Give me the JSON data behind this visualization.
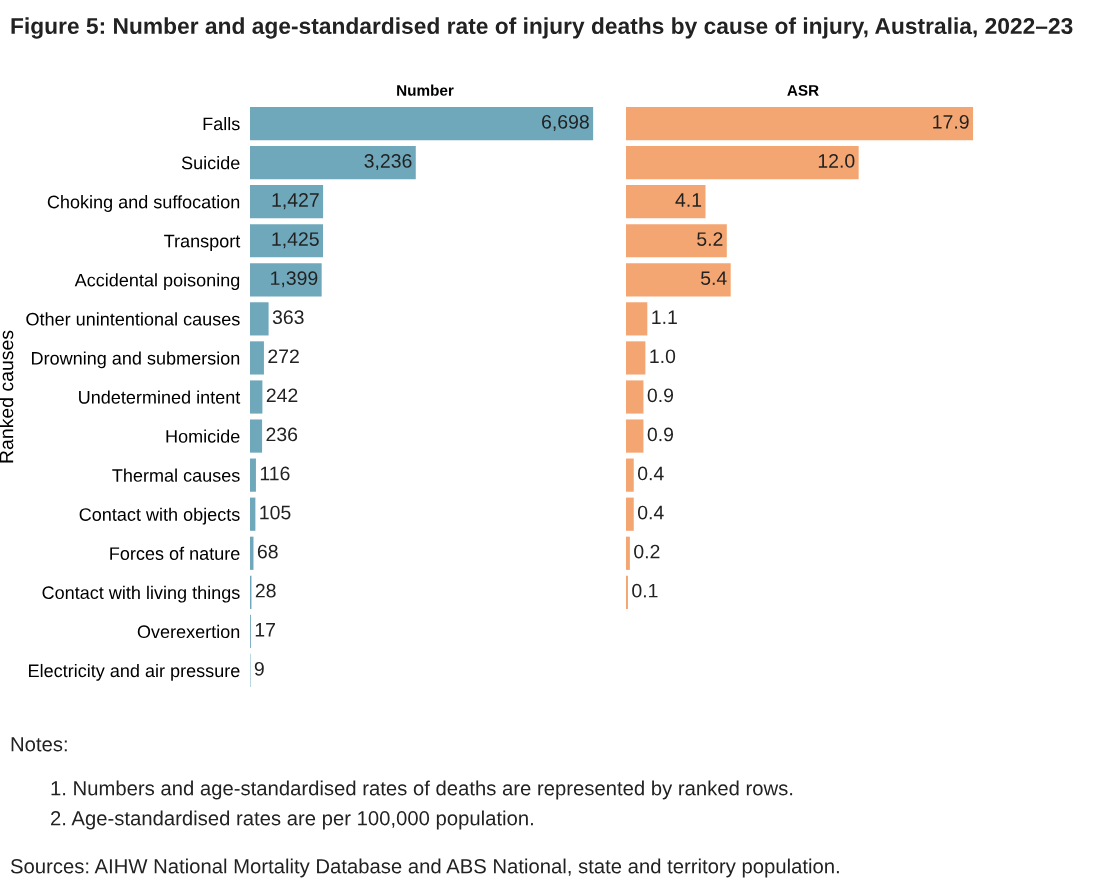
{
  "chart_data": [
    {
      "type": "bar",
      "orientation": "horizontal",
      "title": "Number",
      "ylabel": "Ranked causes",
      "tick_labels": "y",
      "grid": false,
      "categories": [
        "Falls",
        "Suicide",
        "Choking and suffocation",
        "Transport",
        "Accidental poisoning",
        "Other unintentional causes",
        "Drowning and submersion",
        "Undetermined intent",
        "Homicide",
        "Thermal causes",
        "Contact with objects",
        "Forces of nature",
        "Contact with living things",
        "Overexertion",
        "Electricity and air pressure"
      ],
      "series": [
        {
          "color": "#6fa8bb",
          "values": [
            6698,
            3236,
            1427,
            1425,
            1399,
            363,
            272,
            242,
            236,
            116,
            105,
            68,
            28,
            17,
            9
          ],
          "value_labels": [
            "6,698",
            "3,236",
            "1,427",
            "1,425",
            "1,399",
            "363",
            "272",
            "242",
            "236",
            "116",
            "105",
            "68",
            "28",
            "17",
            "9"
          ]
        }
      ],
      "annotations": [
        "Figure 5: Number and age-standardised rate of injury deaths by cause of injury, Australia, 2022–23",
        "Notes:",
        "1. Numbers and age-standardised rates of deaths are represented by ranked rows.",
        "2. Age-standardised rates are per 100,000 population.",
        "Sources: AIHW National Mortality Database and ABS National, state and territory population."
      ]
    },
    {
      "type": "bar",
      "orientation": "horizontal",
      "title": "ASR",
      "tick_labels": false,
      "grid": false,
      "categories": [
        null,
        null,
        null,
        null,
        null,
        null,
        null,
        null,
        null,
        null,
        null,
        null,
        null,
        null,
        null
      ],
      "series": [
        {
          "color": "#f4a672",
          "values": [
            17.9,
            12.0,
            4.1,
            5.2,
            5.4,
            1.1,
            1.0,
            0.9,
            0.9,
            0.4,
            0.4,
            0.2,
            0.1,
            null,
            null
          ],
          "value_labels": [
            "17.9",
            "12.0",
            "4.1",
            "5.2",
            "5.4",
            "1.1",
            "1.0",
            "0.9",
            "0.9",
            "0.4",
            "0.4",
            "0.2",
            "0.1",
            null,
            null
          ]
        }
      ]
    }
  ]
}
